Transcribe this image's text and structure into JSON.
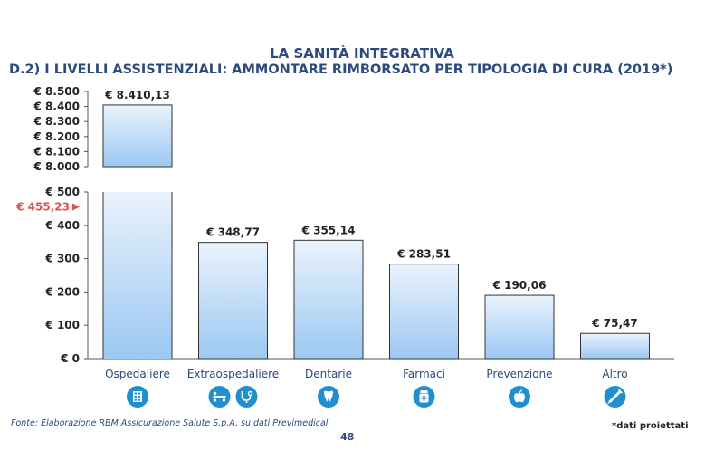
{
  "header": {
    "title": "LA SANITÀ INTEGRATIVA",
    "subtitle": "D.2) I LIVELLI ASSISTENZIALI: AMMONTARE RIMBORSATO PER TIPOLOGIA DI CURA (2019*)"
  },
  "footer": {
    "source": "Fonte: Elaborazione RBM Assicurazione Salute S.p.A. su dati Previmedical",
    "note": "*dati proiettati",
    "page_number": "48"
  },
  "colors": {
    "title": "#2b4a7e",
    "bar_fill_top": "#eaf3fd",
    "bar_fill_bottom": "#9cc8f2",
    "bar_stroke": "#333333",
    "icon_circle": "#1f8fd0",
    "marker": "#d9534f"
  },
  "chart_data": {
    "type": "bar",
    "title": "D.2) I LIVELLI ASSISTENZIALI: AMMONTARE RIMBORSATO PER TIPOLOGIA DI CURA (2019*)",
    "categories": [
      "Ospedaliere",
      "Extraospedaliere",
      "Dentarie",
      "Farmaci",
      "Prevenzione",
      "Altro"
    ],
    "values": [
      8410.13,
      348.77,
      355.14,
      283.51,
      190.06,
      75.47
    ],
    "value_labels": [
      "€ 8.410,13",
      "€ 348,77",
      "€ 355,14",
      "€ 283,51",
      "€ 190,06",
      "€ 75,47"
    ],
    "axis_break": true,
    "lower_segment": {
      "ylim": [
        0,
        500
      ],
      "ticks": [
        0,
        100,
        200,
        300,
        400,
        500
      ],
      "tick_labels": [
        "€ 0",
        "€ 100",
        "€ 200",
        "€ 300",
        "€ 400",
        "€ 500"
      ]
    },
    "upper_segment": {
      "ylim": [
        8000,
        8500
      ],
      "ticks": [
        8000,
        8100,
        8200,
        8300,
        8400,
        8500
      ],
      "tick_labels": [
        "€ 8.000",
        "€ 8.100",
        "€ 8.200",
        "€ 8.300",
        "€ 8.400",
        "€ 8.500"
      ]
    },
    "reference_marker": {
      "value": 455.23,
      "label": "€ 455,23"
    },
    "icons": [
      [
        "building-icon"
      ],
      [
        "stretcher-icon",
        "stethoscope-icon"
      ],
      [
        "tooth-icon"
      ],
      [
        "medicine-bottle-icon"
      ],
      [
        "apple-icon"
      ],
      [
        "syringe-icon"
      ]
    ],
    "grid": false,
    "legend": "none"
  }
}
